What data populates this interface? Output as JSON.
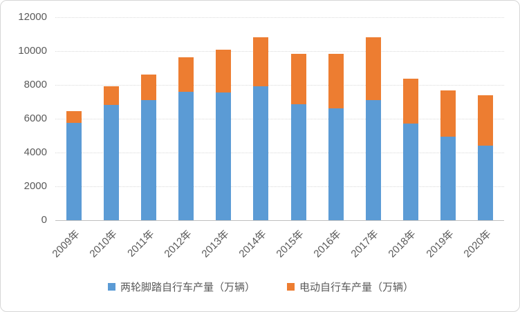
{
  "chart_data": {
    "type": "bar",
    "stacked": true,
    "title": "",
    "categories": [
      "2009年",
      "2010年",
      "2011年",
      "2012年",
      "2013年",
      "2014年",
      "2015年",
      "2016年",
      "2017年",
      "2018年",
      "2019年",
      "2020年"
    ],
    "series": [
      {
        "name": "两轮脚踏自行车产量（万辆）",
        "color": "#5B9BD5",
        "values": [
          5740,
          6820,
          7110,
          7600,
          7560,
          7900,
          6860,
          6610,
          7090,
          5715,
          4940,
          4410
        ]
      },
      {
        "name": "电动自行车产量（万辆）",
        "color": "#ED7D31",
        "values": [
          710,
          1100,
          1490,
          2020,
          2520,
          2900,
          2980,
          3210,
          3710,
          2635,
          2730,
          2980
        ]
      }
    ],
    "totals": [
      6450,
      7920,
      8600,
      9620,
      10080,
      10800,
      9840,
      9820,
      10800,
      8350,
      7670,
      7390
    ],
    "xlabel": "",
    "ylabel": "",
    "ylim": [
      0,
      12000
    ],
    "yticks": [
      "0",
      "2000",
      "4000",
      "6000",
      "8000",
      "10000",
      "12000"
    ],
    "grid": true,
    "legend_position": "bottom",
    "colors": {
      "grid": "#D9D9D9",
      "axis": "#BFBFBF",
      "text": "#595959",
      "background": "#FFFFFF",
      "border": "#D6D6D6"
    }
  }
}
